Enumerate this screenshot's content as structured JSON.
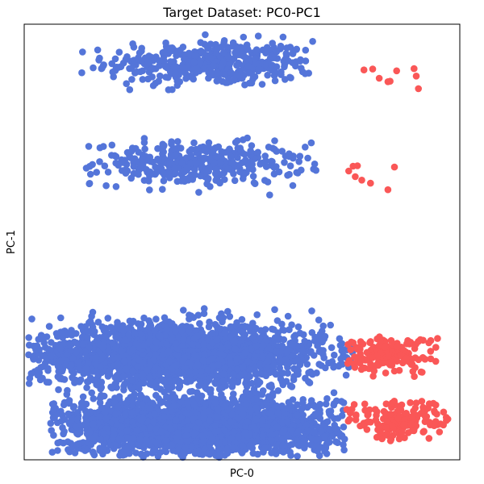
{
  "chart_data": {
    "type": "scatter",
    "title": "Target Dataset: PC0-PC1",
    "xlabel": "PC-0",
    "ylabel": "PC-1",
    "xlim": [
      0,
      100
    ],
    "ylim": [
      0,
      100
    ],
    "x_ticks_shown": false,
    "y_ticks_shown": false,
    "grid": false,
    "legend": "none",
    "marker": "filled-circle",
    "colors": {
      "majority": "#5475d9",
      "minority": "#fa5757"
    },
    "clusters": [
      {
        "class": "majority",
        "count": 420,
        "x_center": 43,
        "y_center": 91,
        "x_spread": 12,
        "y_spread": 2.6,
        "x_range": [
          13,
          67
        ],
        "y_range": [
          84,
          98
        ]
      },
      {
        "class": "minority",
        "points": [
          {
            "x": 78.0,
            "y": 89.5
          },
          {
            "x": 80.0,
            "y": 89.7
          },
          {
            "x": 81.5,
            "y": 87.6
          },
          {
            "x": 83.5,
            "y": 86.8
          },
          {
            "x": 84.0,
            "y": 86.9
          },
          {
            "x": 85.5,
            "y": 89.3
          },
          {
            "x": 89.5,
            "y": 89.8
          },
          {
            "x": 90.0,
            "y": 88.1
          },
          {
            "x": 90.5,
            "y": 85.2
          }
        ]
      },
      {
        "class": "majority",
        "count": 380,
        "x_center": 40,
        "y_center": 68,
        "x_spread": 12,
        "y_spread": 2.4,
        "x_range": [
          13,
          69
        ],
        "y_range": [
          60,
          74
        ]
      },
      {
        "class": "minority",
        "points": [
          {
            "x": 74.5,
            "y": 66.3
          },
          {
            "x": 75.5,
            "y": 67.4
          },
          {
            "x": 76.0,
            "y": 65.0
          },
          {
            "x": 76.5,
            "y": 67.5
          },
          {
            "x": 77.5,
            "y": 64.2
          },
          {
            "x": 79.5,
            "y": 63.5
          },
          {
            "x": 83.5,
            "y": 62.0
          },
          {
            "x": 85.0,
            "y": 67.2
          }
        ]
      },
      {
        "class": "majority",
        "count": 2200,
        "x_center": 35,
        "y_center": 24,
        "x_spread": 17,
        "y_spread": 3.6,
        "x_range": [
          1,
          76
        ],
        "y_range": [
          16,
          35
        ]
      },
      {
        "class": "minority",
        "count": 160,
        "x_center": 83,
        "y_center": 24,
        "x_spread": 5.5,
        "y_spread": 2.2,
        "x_range": [
          72,
          97
        ],
        "y_range": [
          19,
          29
        ]
      },
      {
        "class": "majority",
        "count": 2200,
        "x_center": 39,
        "y_center": 8,
        "x_spread": 16,
        "y_spread": 3.4,
        "x_range": [
          6,
          74
        ],
        "y_range": [
          0.5,
          16
        ]
      },
      {
        "class": "minority",
        "count": 160,
        "x_center": 86,
        "y_center": 9,
        "x_spread": 6,
        "y_spread": 2.2,
        "x_range": [
          74,
          98
        ],
        "y_range": [
          4,
          14
        ]
      }
    ]
  }
}
